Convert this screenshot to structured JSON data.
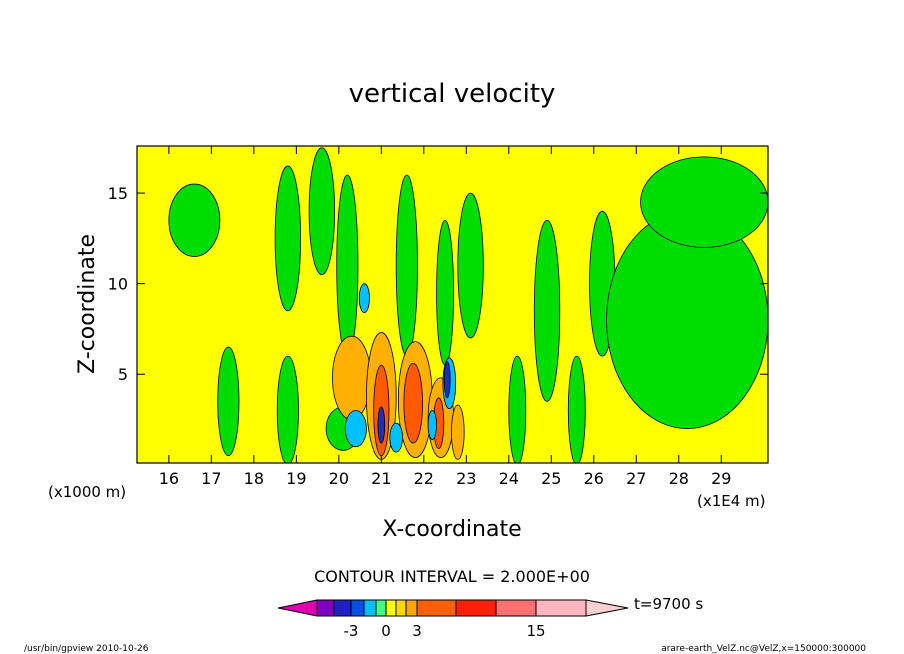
{
  "chart_data": {
    "type": "heatmap",
    "title": "vertical velocity",
    "xlabel": "X-coordinate",
    "ylabel": "Z-coordinate",
    "x_unit_label": "(x1E4 m)",
    "y_unit_label": "(x1000 m)",
    "xlim": [
      15.25,
      30.1
    ],
    "ylim": [
      0.1,
      17.6
    ],
    "x_ticks": [
      "16",
      "17",
      "18",
      "19",
      "20",
      "21",
      "22",
      "23",
      "24",
      "25",
      "26",
      "27",
      "28",
      "29"
    ],
    "y_ticks": [
      "5",
      "10",
      "15"
    ],
    "contour_interval_text": "CONTOUR INTERVAL = 2.000E+00",
    "colorbar": {
      "colors": [
        "#e000b0",
        "#8000c0",
        "#2020c0",
        "#0050e0",
        "#00c0ff",
        "#40ff80",
        "#ffff00",
        "#ffd700",
        "#ffa500",
        "#ff6000",
        "#ff2000",
        "#ff7070",
        "#ffb6c1",
        "#ffd0d0"
      ],
      "labels": [
        {
          "text": "-3",
          "value": -3
        },
        {
          "text": "0",
          "value": 0
        },
        {
          "text": "3",
          "value": 3
        },
        {
          "text": "15",
          "value": 15
        }
      ],
      "time_label": "t=9700 s"
    },
    "blobs": [
      {
        "level": "negative",
        "x": 16.6,
        "z": 13.5,
        "rx": 0.6,
        "rz": 2.0
      },
      {
        "level": "negative",
        "x": 18.8,
        "z": 12.5,
        "rx": 0.3,
        "rz": 4.0
      },
      {
        "level": "negative",
        "x": 19.6,
        "z": 14.0,
        "rx": 0.3,
        "rz": 3.5
      },
      {
        "level": "negative",
        "x": 20.2,
        "z": 11.0,
        "rx": 0.25,
        "rz": 5.0
      },
      {
        "level": "negative",
        "x": 21.6,
        "z": 11.0,
        "rx": 0.25,
        "rz": 5.0
      },
      {
        "level": "negative",
        "x": 22.5,
        "z": 9.5,
        "rx": 0.2,
        "rz": 4.0
      },
      {
        "level": "negative",
        "x": 23.1,
        "z": 11.0,
        "rx": 0.3,
        "rz": 4.0
      },
      {
        "level": "negative",
        "x": 24.9,
        "z": 8.5,
        "rx": 0.3,
        "rz": 5.0
      },
      {
        "level": "negative",
        "x": 26.2,
        "z": 10.0,
        "rx": 0.3,
        "rz": 4.0
      },
      {
        "level": "negative",
        "x": 28.2,
        "z": 8.0,
        "rx": 1.9,
        "rz": 6.0
      },
      {
        "level": "negative",
        "x": 28.6,
        "z": 14.5,
        "rx": 1.5,
        "rz": 2.5
      },
      {
        "level": "negative",
        "x": 17.4,
        "z": 3.5,
        "rx": 0.25,
        "rz": 3.0
      },
      {
        "level": "negative",
        "x": 18.8,
        "z": 3.0,
        "rx": 0.25,
        "rz": 3.0
      },
      {
        "level": "negative",
        "x": 24.2,
        "z": 3.0,
        "rx": 0.2,
        "rz": 3.0
      },
      {
        "level": "negative",
        "x": 25.6,
        "z": 3.0,
        "rx": 0.2,
        "rz": 3.0
      },
      {
        "level": "negative",
        "x": 20.1,
        "z": 2.0,
        "rx": 0.4,
        "rz": 1.2
      },
      {
        "level": "positive",
        "x": 20.3,
        "z": 4.8,
        "rx": 0.45,
        "rz": 2.3
      },
      {
        "level": "positive",
        "x": 21.0,
        "z": 3.8,
        "rx": 0.35,
        "rz": 3.5
      },
      {
        "level": "positive",
        "x": 21.8,
        "z": 3.6,
        "rx": 0.4,
        "rz": 3.2
      },
      {
        "level": "positive",
        "x": 22.4,
        "z": 2.6,
        "rx": 0.3,
        "rz": 2.2
      },
      {
        "level": "positive",
        "x": 22.8,
        "z": 1.8,
        "rx": 0.15,
        "rz": 1.5
      },
      {
        "level": "strong",
        "x": 21.0,
        "z": 3.0,
        "rx": 0.18,
        "rz": 2.5
      },
      {
        "level": "strong",
        "x": 21.75,
        "z": 3.4,
        "rx": 0.22,
        "rz": 2.2
      },
      {
        "level": "strong",
        "x": 22.35,
        "z": 2.3,
        "rx": 0.12,
        "rz": 1.4
      },
      {
        "level": "weak-down",
        "x": 20.4,
        "z": 2.0,
        "rx": 0.25,
        "rz": 1.0
      },
      {
        "level": "weak-down",
        "x": 21.35,
        "z": 1.5,
        "rx": 0.15,
        "rz": 0.8
      },
      {
        "level": "weak-down",
        "x": 22.6,
        "z": 4.5,
        "rx": 0.15,
        "rz": 1.4
      },
      {
        "level": "weak-down",
        "x": 20.6,
        "z": 9.2,
        "rx": 0.12,
        "rz": 0.8
      },
      {
        "level": "weak-down",
        "x": 22.2,
        "z": 2.2,
        "rx": 0.1,
        "rz": 0.8
      },
      {
        "level": "down",
        "x": 21.0,
        "z": 2.2,
        "rx": 0.08,
        "rz": 1.0
      },
      {
        "level": "down",
        "x": 22.55,
        "z": 4.7,
        "rx": 0.07,
        "rz": 1.0
      }
    ]
  },
  "footer": {
    "left": "/usr/bin/gpview 2010-10-26",
    "right": "arare-earth_VelZ.nc@VelZ,x=150000:300000"
  }
}
